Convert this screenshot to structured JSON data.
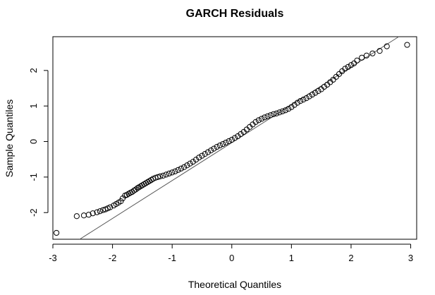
{
  "chart_data": {
    "type": "scatter",
    "title": "GARCH Residuals",
    "xlabel": "Theoretical Quantiles",
    "ylabel": "Sample Quantiles",
    "xlim": [
      -3.0,
      3.1
    ],
    "ylim": [
      -2.75,
      2.95
    ],
    "xticks": [
      -3,
      -2,
      -1,
      0,
      1,
      2,
      3
    ],
    "yticks": [
      -2,
      -1,
      0,
      1,
      2
    ],
    "grid": false,
    "legend": "none",
    "marker": "open-circle",
    "reference_line": {
      "label": "qqline",
      "x": [
        -2.55,
        2.8
      ],
      "y": [
        -2.75,
        2.95
      ]
    },
    "series": [
      {
        "name": "",
        "x": [
          -2.94,
          -2.6,
          -2.48,
          -2.4,
          -2.33,
          -2.26,
          -2.21,
          -2.16,
          -2.12,
          -2.08,
          -2.04,
          -1.98,
          -1.94,
          -1.9,
          -1.86,
          -1.83,
          -1.79,
          -1.76,
          -1.73,
          -1.7,
          -1.67,
          -1.64,
          -1.61,
          -1.58,
          -1.56,
          -1.53,
          -1.5,
          -1.47,
          -1.44,
          -1.41,
          -1.38,
          -1.35,
          -1.32,
          -1.28,
          -1.24,
          -1.2,
          -1.15,
          -1.1,
          -1.05,
          -1.0,
          -0.95,
          -0.9,
          -0.85,
          -0.8,
          -0.75,
          -0.7,
          -0.65,
          -0.6,
          -0.55,
          -0.5,
          -0.45,
          -0.4,
          -0.35,
          -0.3,
          -0.25,
          -0.2,
          -0.15,
          -0.1,
          -0.05,
          0.0,
          0.05,
          0.1,
          0.15,
          0.2,
          0.25,
          0.3,
          0.35,
          0.4,
          0.45,
          0.5,
          0.55,
          0.6,
          0.65,
          0.7,
          0.75,
          0.8,
          0.85,
          0.9,
          0.95,
          1.0,
          1.05,
          1.1,
          1.15,
          1.2,
          1.25,
          1.3,
          1.35,
          1.4,
          1.45,
          1.5,
          1.55,
          1.6,
          1.65,
          1.7,
          1.75,
          1.8,
          1.85,
          1.9,
          1.95,
          2.0,
          2.05,
          2.1,
          2.18,
          2.26,
          2.36,
          2.48,
          2.6,
          2.94
        ],
        "y": [
          -2.57,
          -2.1,
          -2.08,
          -2.06,
          -2.02,
          -1.99,
          -1.96,
          -1.93,
          -1.91,
          -1.88,
          -1.85,
          -1.8,
          -1.76,
          -1.72,
          -1.68,
          -1.6,
          -1.52,
          -1.5,
          -1.47,
          -1.44,
          -1.42,
          -1.38,
          -1.35,
          -1.31,
          -1.29,
          -1.26,
          -1.23,
          -1.2,
          -1.17,
          -1.14,
          -1.11,
          -1.08,
          -1.05,
          -1.02,
          -1.0,
          -0.98,
          -0.96,
          -0.93,
          -0.9,
          -0.87,
          -0.84,
          -0.8,
          -0.76,
          -0.72,
          -0.67,
          -0.62,
          -0.57,
          -0.51,
          -0.45,
          -0.4,
          -0.35,
          -0.3,
          -0.25,
          -0.2,
          -0.15,
          -0.11,
          -0.07,
          -0.03,
          0.01,
          0.05,
          0.1,
          0.15,
          0.21,
          0.27,
          0.34,
          0.41,
          0.48,
          0.55,
          0.6,
          0.64,
          0.68,
          0.71,
          0.74,
          0.77,
          0.79,
          0.82,
          0.85,
          0.88,
          0.92,
          0.97,
          1.03,
          1.09,
          1.14,
          1.18,
          1.22,
          1.27,
          1.32,
          1.37,
          1.42,
          1.47,
          1.54,
          1.6,
          1.67,
          1.74,
          1.82,
          1.9,
          1.98,
          2.05,
          2.1,
          2.15,
          2.2,
          2.28,
          2.36,
          2.42,
          2.48,
          2.55,
          2.68,
          2.72
        ]
      }
    ]
  }
}
